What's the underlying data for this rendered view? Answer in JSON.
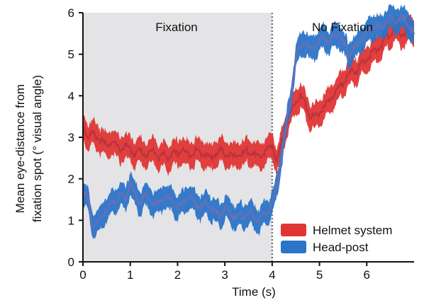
{
  "chart_data": {
    "type": "line",
    "title": "",
    "xlabel": "Time (s)",
    "ylabel": "Mean eye-distance from fixation spot (° visual angle)",
    "ylabel_lines": [
      "Mean eye-distance from",
      "fixation spot (° visual angle)"
    ],
    "xlim": [
      0,
      7
    ],
    "ylim": [
      0,
      6
    ],
    "xticks": [
      0,
      1,
      2,
      3,
      4,
      5,
      6
    ],
    "yticks": [
      0,
      1,
      2,
      3,
      4,
      5,
      6
    ],
    "grid": false,
    "legend_position": "bottom-right",
    "regions": [
      {
        "label": "Fixation",
        "x": [
          0,
          4
        ],
        "shaded": true,
        "color": "#e4e4e6"
      },
      {
        "label": "No Fixation",
        "x": [
          4,
          7
        ],
        "shaded": false
      }
    ],
    "divider": {
      "x": 4,
      "style": "dotted",
      "color": "#777777"
    },
    "series": [
      {
        "name": "Helmet system",
        "color": "#e03535",
        "center_color": "#b8323c",
        "x": [
          0,
          0.1,
          0.2,
          0.3,
          0.4,
          0.5,
          0.6,
          0.7,
          0.8,
          0.9,
          1.0,
          1.1,
          1.2,
          1.3,
          1.4,
          1.5,
          1.6,
          1.7,
          1.8,
          1.9,
          2.0,
          2.1,
          2.2,
          2.3,
          2.4,
          2.5,
          2.6,
          2.7,
          2.8,
          2.9,
          3.0,
          3.1,
          3.2,
          3.3,
          3.4,
          3.5,
          3.6,
          3.7,
          3.8,
          3.9,
          4.0,
          4.1,
          4.2,
          4.3,
          4.4,
          4.5,
          4.6,
          4.7,
          4.8,
          4.9,
          5.0,
          5.1,
          5.2,
          5.3,
          5.4,
          5.5,
          5.6,
          5.7,
          5.8,
          5.9,
          6.0,
          6.1,
          6.2,
          6.3,
          6.4,
          6.5,
          6.6,
          6.7,
          6.8,
          6.9,
          7.0
        ],
        "y": [
          3.3,
          3.0,
          3.1,
          3.0,
          2.9,
          2.8,
          2.9,
          2.8,
          2.7,
          2.8,
          2.7,
          2.6,
          2.7,
          2.6,
          2.6,
          2.7,
          2.5,
          2.6,
          2.5,
          2.6,
          2.6,
          2.7,
          2.6,
          2.6,
          2.7,
          2.6,
          2.6,
          2.5,
          2.6,
          2.7,
          2.6,
          2.6,
          2.5,
          2.6,
          2.6,
          2.7,
          2.6,
          2.5,
          2.6,
          2.7,
          2.8,
          2.4,
          2.9,
          3.3,
          3.6,
          3.9,
          4.0,
          3.8,
          3.5,
          3.5,
          3.6,
          3.7,
          3.9,
          4.0,
          4.2,
          4.3,
          4.5,
          4.6,
          4.6,
          4.8,
          4.9,
          5.0,
          5.1,
          5.2,
          5.4,
          5.5,
          5.6,
          5.5,
          5.5,
          5.6,
          5.5
        ],
        "band_half_width": 0.3
      },
      {
        "name": "Head-post",
        "color": "#2b74c8",
        "center_color": "#6a6fb4",
        "x": [
          0,
          0.1,
          0.2,
          0.3,
          0.4,
          0.5,
          0.6,
          0.7,
          0.8,
          0.9,
          1.0,
          1.1,
          1.2,
          1.3,
          1.4,
          1.5,
          1.6,
          1.7,
          1.8,
          1.9,
          2.0,
          2.1,
          2.2,
          2.3,
          2.4,
          2.5,
          2.6,
          2.7,
          2.8,
          2.9,
          3.0,
          3.1,
          3.2,
          3.3,
          3.4,
          3.5,
          3.6,
          3.7,
          3.8,
          3.9,
          4.0,
          4.1,
          4.2,
          4.3,
          4.4,
          4.5,
          4.6,
          4.7,
          4.8,
          4.9,
          5.0,
          5.1,
          5.2,
          5.3,
          5.4,
          5.5,
          5.6,
          5.7,
          5.8,
          5.9,
          6.0,
          6.1,
          6.2,
          6.3,
          6.4,
          6.5,
          6.6,
          6.7,
          6.8,
          6.9,
          7.0
        ],
        "y": [
          1.7,
          1.5,
          0.9,
          0.9,
          1.1,
          1.3,
          1.4,
          1.5,
          1.6,
          1.5,
          1.9,
          1.6,
          1.4,
          1.6,
          1.5,
          1.4,
          1.4,
          1.6,
          1.5,
          1.5,
          1.3,
          1.4,
          1.6,
          1.5,
          1.4,
          1.3,
          1.4,
          1.3,
          1.2,
          1.1,
          1.3,
          1.2,
          1.1,
          1.1,
          1.1,
          1.2,
          1.1,
          1.0,
          1.1,
          1.2,
          1.4,
          1.8,
          2.6,
          3.3,
          4.0,
          4.9,
          5.2,
          5.3,
          5.1,
          5.2,
          5.3,
          5.4,
          5.3,
          5.4,
          5.5,
          5.3,
          5.0,
          5.1,
          5.2,
          5.4,
          5.5,
          5.6,
          5.7,
          5.6,
          5.8,
          5.9,
          5.8,
          5.9,
          5.8,
          5.7,
          5.5
        ],
        "band_half_width": 0.28
      }
    ]
  }
}
